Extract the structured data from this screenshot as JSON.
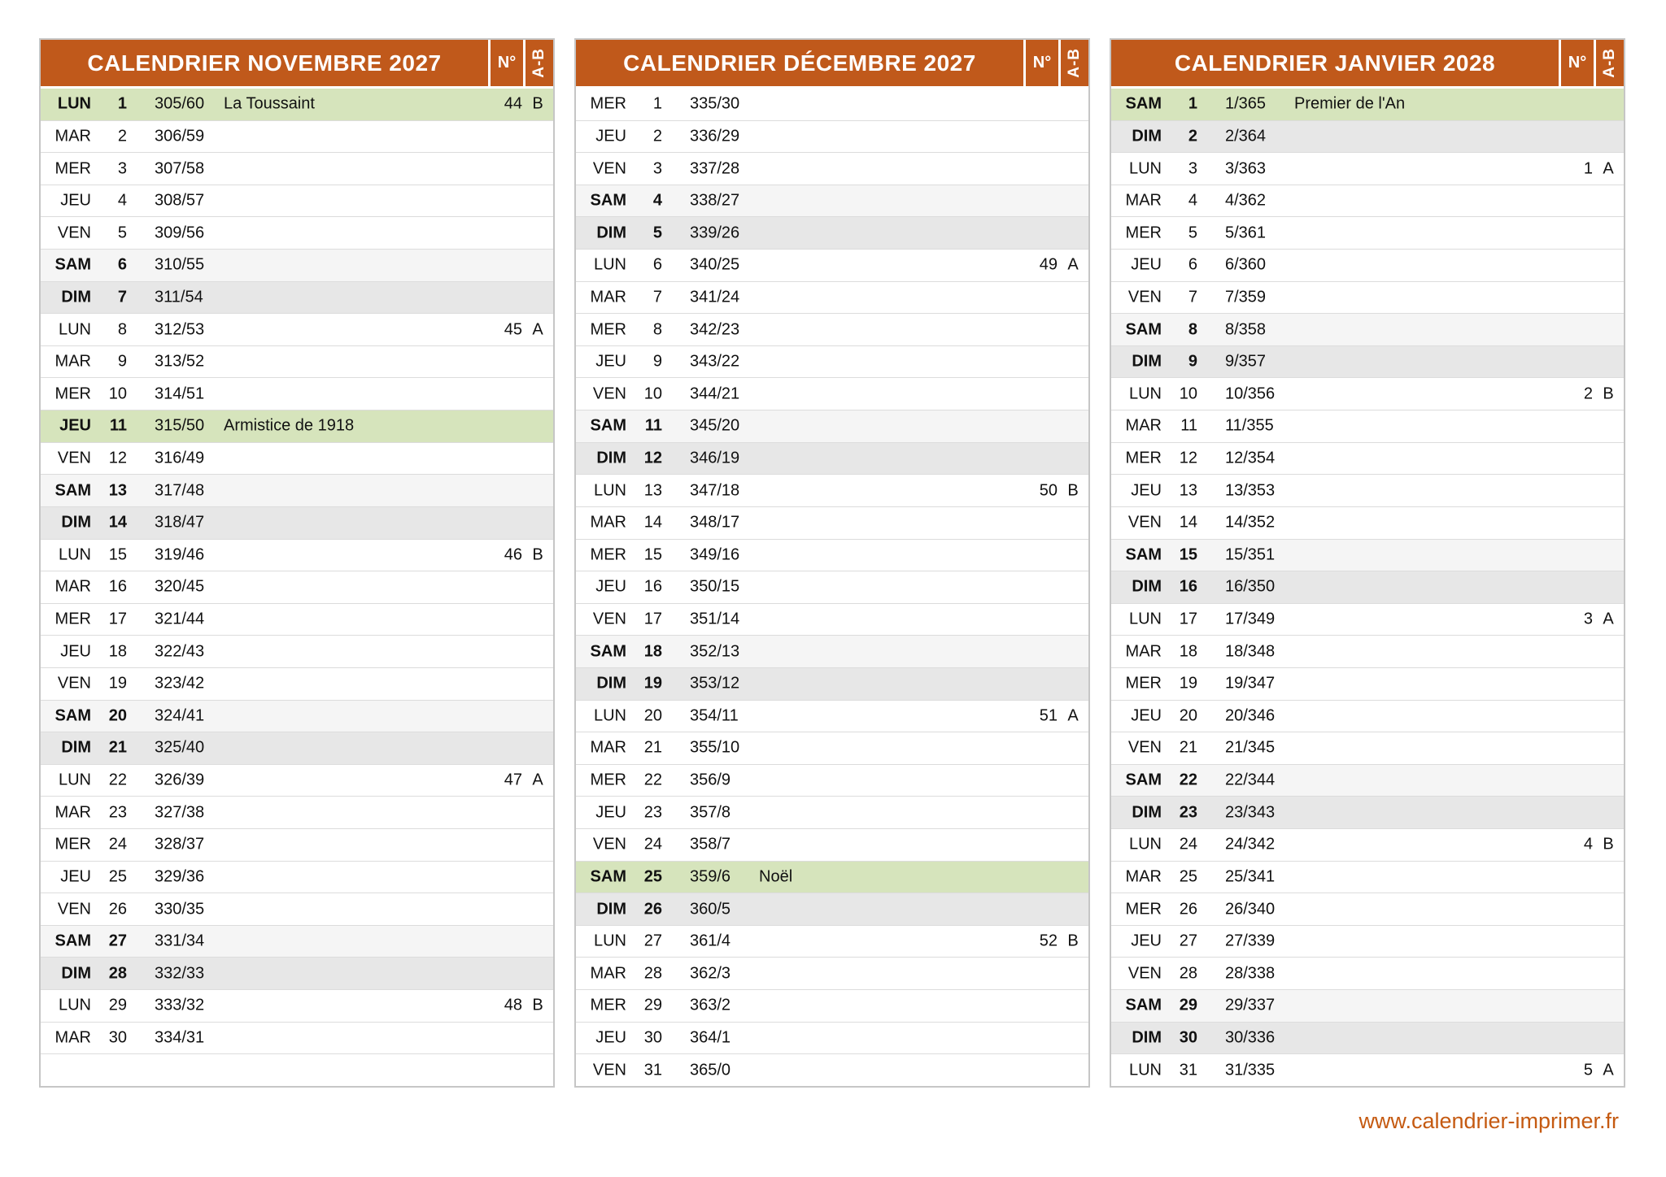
{
  "labels": {
    "week_col": "N°",
    "ab_col": "A-B"
  },
  "footer": {
    "link": "www.calendrier-imprimer.fr"
  },
  "colors": {
    "accent": "#c0591b",
    "holiday": "#d6e4bc",
    "saturday": "#f5f5f5",
    "sunday": "#e7e7e7",
    "border": "#c6c6c6",
    "rowline": "#dcdcdc",
    "link": "#c55a11",
    "text": "#111111"
  },
  "calendars": [
    {
      "title": "CALENDRIER NOVEMBRE 2027",
      "rows": [
        {
          "day": "LUN",
          "num": "1",
          "doy": "305/60",
          "holiday": "La Toussaint",
          "week": "44",
          "ab": "B",
          "type": "hol"
        },
        {
          "day": "MAR",
          "num": "2",
          "doy": "306/59",
          "type": "wd"
        },
        {
          "day": "MER",
          "num": "3",
          "doy": "307/58",
          "type": "wd"
        },
        {
          "day": "JEU",
          "num": "4",
          "doy": "308/57",
          "type": "wd"
        },
        {
          "day": "VEN",
          "num": "5",
          "doy": "309/56",
          "type": "wd"
        },
        {
          "day": "SAM",
          "num": "6",
          "doy": "310/55",
          "type": "sat"
        },
        {
          "day": "DIM",
          "num": "7",
          "doy": "311/54",
          "type": "sun"
        },
        {
          "day": "LUN",
          "num": "8",
          "doy": "312/53",
          "week": "45",
          "ab": "A",
          "type": "wd"
        },
        {
          "day": "MAR",
          "num": "9",
          "doy": "313/52",
          "type": "wd"
        },
        {
          "day": "MER",
          "num": "10",
          "doy": "314/51",
          "type": "wd"
        },
        {
          "day": "JEU",
          "num": "11",
          "doy": "315/50",
          "holiday": "Armistice de 1918",
          "type": "hol"
        },
        {
          "day": "VEN",
          "num": "12",
          "doy": "316/49",
          "type": "wd"
        },
        {
          "day": "SAM",
          "num": "13",
          "doy": "317/48",
          "type": "sat"
        },
        {
          "day": "DIM",
          "num": "14",
          "doy": "318/47",
          "type": "sun"
        },
        {
          "day": "LUN",
          "num": "15",
          "doy": "319/46",
          "week": "46",
          "ab": "B",
          "type": "wd"
        },
        {
          "day": "MAR",
          "num": "16",
          "doy": "320/45",
          "type": "wd"
        },
        {
          "day": "MER",
          "num": "17",
          "doy": "321/44",
          "type": "wd"
        },
        {
          "day": "JEU",
          "num": "18",
          "doy": "322/43",
          "type": "wd"
        },
        {
          "day": "VEN",
          "num": "19",
          "doy": "323/42",
          "type": "wd"
        },
        {
          "day": "SAM",
          "num": "20",
          "doy": "324/41",
          "type": "sat"
        },
        {
          "day": "DIM",
          "num": "21",
          "doy": "325/40",
          "type": "sun"
        },
        {
          "day": "LUN",
          "num": "22",
          "doy": "326/39",
          "week": "47",
          "ab": "A",
          "type": "wd"
        },
        {
          "day": "MAR",
          "num": "23",
          "doy": "327/38",
          "type": "wd"
        },
        {
          "day": "MER",
          "num": "24",
          "doy": "328/37",
          "type": "wd"
        },
        {
          "day": "JEU",
          "num": "25",
          "doy": "329/36",
          "type": "wd"
        },
        {
          "day": "VEN",
          "num": "26",
          "doy": "330/35",
          "type": "wd"
        },
        {
          "day": "SAM",
          "num": "27",
          "doy": "331/34",
          "type": "sat"
        },
        {
          "day": "DIM",
          "num": "28",
          "doy": "332/33",
          "type": "sun"
        },
        {
          "day": "LUN",
          "num": "29",
          "doy": "333/32",
          "week": "48",
          "ab": "B",
          "type": "wd"
        },
        {
          "day": "MAR",
          "num": "30",
          "doy": "334/31",
          "type": "wd"
        },
        {
          "type": "empty"
        }
      ]
    },
    {
      "title": "CALENDRIER DÉCEMBRE 2027",
      "rows": [
        {
          "day": "MER",
          "num": "1",
          "doy": "335/30",
          "type": "wd"
        },
        {
          "day": "JEU",
          "num": "2",
          "doy": "336/29",
          "type": "wd"
        },
        {
          "day": "VEN",
          "num": "3",
          "doy": "337/28",
          "type": "wd"
        },
        {
          "day": "SAM",
          "num": "4",
          "doy": "338/27",
          "type": "sat"
        },
        {
          "day": "DIM",
          "num": "5",
          "doy": "339/26",
          "type": "sun"
        },
        {
          "day": "LUN",
          "num": "6",
          "doy": "340/25",
          "week": "49",
          "ab": "A",
          "type": "wd"
        },
        {
          "day": "MAR",
          "num": "7",
          "doy": "341/24",
          "type": "wd"
        },
        {
          "day": "MER",
          "num": "8",
          "doy": "342/23",
          "type": "wd"
        },
        {
          "day": "JEU",
          "num": "9",
          "doy": "343/22",
          "type": "wd"
        },
        {
          "day": "VEN",
          "num": "10",
          "doy": "344/21",
          "type": "wd"
        },
        {
          "day": "SAM",
          "num": "11",
          "doy": "345/20",
          "type": "sat"
        },
        {
          "day": "DIM",
          "num": "12",
          "doy": "346/19",
          "type": "sun"
        },
        {
          "day": "LUN",
          "num": "13",
          "doy": "347/18",
          "week": "50",
          "ab": "B",
          "type": "wd"
        },
        {
          "day": "MAR",
          "num": "14",
          "doy": "348/17",
          "type": "wd"
        },
        {
          "day": "MER",
          "num": "15",
          "doy": "349/16",
          "type": "wd"
        },
        {
          "day": "JEU",
          "num": "16",
          "doy": "350/15",
          "type": "wd"
        },
        {
          "day": "VEN",
          "num": "17",
          "doy": "351/14",
          "type": "wd"
        },
        {
          "day": "SAM",
          "num": "18",
          "doy": "352/13",
          "type": "sat"
        },
        {
          "day": "DIM",
          "num": "19",
          "doy": "353/12",
          "type": "sun"
        },
        {
          "day": "LUN",
          "num": "20",
          "doy": "354/11",
          "week": "51",
          "ab": "A",
          "type": "wd"
        },
        {
          "day": "MAR",
          "num": "21",
          "doy": "355/10",
          "type": "wd"
        },
        {
          "day": "MER",
          "num": "22",
          "doy": "356/9",
          "type": "wd"
        },
        {
          "day": "JEU",
          "num": "23",
          "doy": "357/8",
          "type": "wd"
        },
        {
          "day": "VEN",
          "num": "24",
          "doy": "358/7",
          "type": "wd"
        },
        {
          "day": "SAM",
          "num": "25",
          "doy": "359/6",
          "holiday": "Noël",
          "type": "hol"
        },
        {
          "day": "DIM",
          "num": "26",
          "doy": "360/5",
          "type": "sun"
        },
        {
          "day": "LUN",
          "num": "27",
          "doy": "361/4",
          "week": "52",
          "ab": "B",
          "type": "wd"
        },
        {
          "day": "MAR",
          "num": "28",
          "doy": "362/3",
          "type": "wd"
        },
        {
          "day": "MER",
          "num": "29",
          "doy": "363/2",
          "type": "wd"
        },
        {
          "day": "JEU",
          "num": "30",
          "doy": "364/1",
          "type": "wd"
        },
        {
          "day": "VEN",
          "num": "31",
          "doy": "365/0",
          "type": "wd"
        }
      ]
    },
    {
      "title": "CALENDRIER JANVIER 2028",
      "rows": [
        {
          "day": "SAM",
          "num": "1",
          "doy": "1/365",
          "holiday": "Premier de l'An",
          "type": "hol"
        },
        {
          "day": "DIM",
          "num": "2",
          "doy": "2/364",
          "type": "sun"
        },
        {
          "day": "LUN",
          "num": "3",
          "doy": "3/363",
          "week": "1",
          "ab": "A",
          "type": "wd"
        },
        {
          "day": "MAR",
          "num": "4",
          "doy": "4/362",
          "type": "wd"
        },
        {
          "day": "MER",
          "num": "5",
          "doy": "5/361",
          "type": "wd"
        },
        {
          "day": "JEU",
          "num": "6",
          "doy": "6/360",
          "type": "wd"
        },
        {
          "day": "VEN",
          "num": "7",
          "doy": "7/359",
          "type": "wd"
        },
        {
          "day": "SAM",
          "num": "8",
          "doy": "8/358",
          "type": "sat"
        },
        {
          "day": "DIM",
          "num": "9",
          "doy": "9/357",
          "type": "sun"
        },
        {
          "day": "LUN",
          "num": "10",
          "doy": "10/356",
          "week": "2",
          "ab": "B",
          "type": "wd"
        },
        {
          "day": "MAR",
          "num": "11",
          "doy": "11/355",
          "type": "wd"
        },
        {
          "day": "MER",
          "num": "12",
          "doy": "12/354",
          "type": "wd"
        },
        {
          "day": "JEU",
          "num": "13",
          "doy": "13/353",
          "type": "wd"
        },
        {
          "day": "VEN",
          "num": "14",
          "doy": "14/352",
          "type": "wd"
        },
        {
          "day": "SAM",
          "num": "15",
          "doy": "15/351",
          "type": "sat"
        },
        {
          "day": "DIM",
          "num": "16",
          "doy": "16/350",
          "type": "sun"
        },
        {
          "day": "LUN",
          "num": "17",
          "doy": "17/349",
          "week": "3",
          "ab": "A",
          "type": "wd"
        },
        {
          "day": "MAR",
          "num": "18",
          "doy": "18/348",
          "type": "wd"
        },
        {
          "day": "MER",
          "num": "19",
          "doy": "19/347",
          "type": "wd"
        },
        {
          "day": "JEU",
          "num": "20",
          "doy": "20/346",
          "type": "wd"
        },
        {
          "day": "VEN",
          "num": "21",
          "doy": "21/345",
          "type": "wd"
        },
        {
          "day": "SAM",
          "num": "22",
          "doy": "22/344",
          "type": "sat"
        },
        {
          "day": "DIM",
          "num": "23",
          "doy": "23/343",
          "type": "sun"
        },
        {
          "day": "LUN",
          "num": "24",
          "doy": "24/342",
          "week": "4",
          "ab": "B",
          "type": "wd"
        },
        {
          "day": "MAR",
          "num": "25",
          "doy": "25/341",
          "type": "wd"
        },
        {
          "day": "MER",
          "num": "26",
          "doy": "26/340",
          "type": "wd"
        },
        {
          "day": "JEU",
          "num": "27",
          "doy": "27/339",
          "type": "wd"
        },
        {
          "day": "VEN",
          "num": "28",
          "doy": "28/338",
          "type": "wd"
        },
        {
          "day": "SAM",
          "num": "29",
          "doy": "29/337",
          "type": "sat"
        },
        {
          "day": "DIM",
          "num": "30",
          "doy": "30/336",
          "type": "sun"
        },
        {
          "day": "LUN",
          "num": "31",
          "doy": "31/335",
          "week": "5",
          "ab": "A",
          "type": "wd"
        }
      ]
    }
  ]
}
